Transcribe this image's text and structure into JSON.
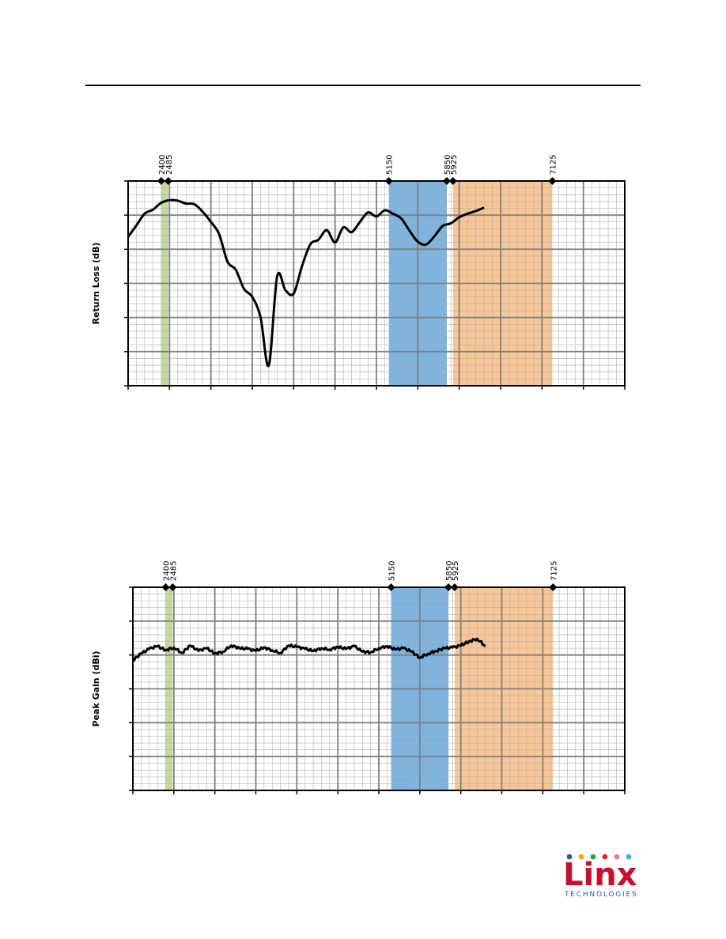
{
  "header_rule": true,
  "colors": {
    "band_2400": "#c3da9a",
    "band_5150": "#7ab4e2",
    "band_5925": "#f9c795",
    "grid_major": "#808080",
    "grid_minor": "#b0b0b0",
    "line": "#000000",
    "logo_red": "#c8102e",
    "logo_blue": "#1f5fa8"
  },
  "chart_data": [
    {
      "type": "line",
      "ylabel": "Return Loss (dB)",
      "xlim": [
        2000,
        8000
      ],
      "x_start": 2000,
      "x_step": 100,
      "bands": [
        [
          2400,
          2485
        ],
        [
          5150,
          5850
        ],
        [
          5925,
          7125
        ]
      ],
      "markers": [
        "2400",
        "2485",
        "5150",
        "5850",
        "5925",
        "7125"
      ],
      "ylim": [
        -30,
        0
      ],
      "values": [
        -8.2,
        -6.5,
        -4.8,
        -4.2,
        -3.2,
        -2.8,
        -2.9,
        -3.3,
        -3.4,
        -4.5,
        -6.0,
        -7.8,
        -11.8,
        -13.0,
        -15.8,
        -17.0,
        -20.0,
        -27.0,
        -14.0,
        -16.0,
        -16.5,
        -12.5,
        -9.3,
        -8.6,
        -7.2,
        -9.0,
        -6.8,
        -7.5,
        -6.0,
        -4.6,
        -5.2,
        -4.3,
        -4.8,
        -5.5,
        -7.3,
        -8.9,
        -9.3,
        -8.1,
        -6.6,
        -6.2,
        -5.3,
        -4.8,
        -4.4,
        -3.9
      ]
    },
    {
      "type": "line",
      "ylabel": "Peak Gain (dBi)",
      "xlim": [
        2000,
        8000
      ],
      "x_start": 2000,
      "x_step": 100,
      "bands": [
        [
          2400,
          2485
        ],
        [
          5150,
          5850
        ],
        [
          5925,
          7125
        ]
      ],
      "markers": [
        "2400",
        "2485",
        "5150",
        "5850",
        "5925",
        "7125"
      ],
      "ylim": [
        -20,
        10
      ],
      "values": [
        -0.8,
        0.2,
        0.9,
        1.3,
        0.7,
        1.1,
        0.3,
        1.4,
        0.6,
        1.0,
        0.2,
        0.5,
        1.4,
        1.0,
        0.9,
        0.6,
        1.1,
        0.7,
        0.3,
        1.4,
        1.2,
        0.9,
        0.6,
        1.0,
        0.8,
        1.2,
        0.9,
        1.3,
        0.5,
        0.4,
        1.0,
        1.3,
        0.8,
        1.0,
        0.5,
        -0.4,
        0.2,
        0.6,
        1.0,
        1.1,
        1.4,
        2.0,
        2.4,
        1.3
      ]
    }
  ],
  "logo": {
    "name": "Linx",
    "sub": "TECHNOLOGIES",
    "dot_colors": [
      "#1f5fa8",
      "#f2a900",
      "#2e9e48",
      "#e2213f",
      "#e9779e",
      "#37b8d9"
    ]
  }
}
